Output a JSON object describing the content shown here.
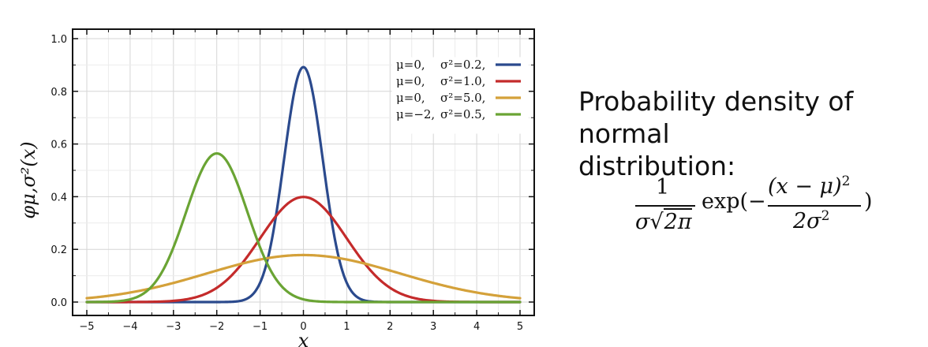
{
  "chart_data": {
    "type": "line",
    "title": "",
    "xlabel": "x",
    "ylabel": "φμ,σ²(x)",
    "xlim": [
      -5,
      5
    ],
    "ylim": [
      0,
      1.0
    ],
    "xticks": [
      "−5",
      "−4",
      "−3",
      "−2",
      "−1",
      "0",
      "1",
      "2",
      "3",
      "4",
      "5"
    ],
    "yticks": [
      "0.0",
      "0.2",
      "0.4",
      "0.6",
      "0.8",
      "1.0"
    ],
    "grid": true,
    "legend_position": "top-right",
    "series": [
      {
        "name": "μ=0, σ²=0.2,",
        "mu_label": "μ=0,",
        "var_label": "σ²=0.2,",
        "mu": 0,
        "variance": 0.2,
        "color": "#2b4a8d"
      },
      {
        "name": "μ=0, σ²=1.0,",
        "mu_label": "μ=0,",
        "var_label": "σ²=1.0,",
        "mu": 0,
        "variance": 1.0,
        "color": "#c42b2b"
      },
      {
        "name": "μ=0, σ²=5.0,",
        "mu_label": "μ=0,",
        "var_label": "σ²=5.0,",
        "mu": 0,
        "variance": 5.0,
        "color": "#d4a13a"
      },
      {
        "name": "μ=−2, σ²=0.5,",
        "mu_label": "μ=−2,",
        "var_label": "σ²=0.5,",
        "mu": -2,
        "variance": 0.5,
        "color": "#6aa434"
      }
    ]
  },
  "caption": {
    "line1": "Probability density of normal",
    "line2": "distribution:"
  },
  "formula": {
    "numerator1": "1",
    "denominator1_sigma": "σ",
    "denominator1_root": "2π",
    "exp": "exp(−",
    "numerator2": "(x − μ)",
    "exponent": "2",
    "denominator2": "2σ",
    "close": ")"
  }
}
